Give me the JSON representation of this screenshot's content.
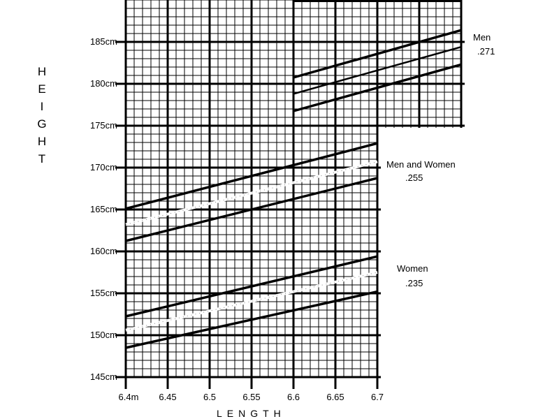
{
  "chart_data": {
    "type": "line",
    "title": "",
    "xlabel": "LENGTH",
    "ylabel": "HEIGHT",
    "xlim": [
      6.4,
      6.7
    ],
    "ylim": [
      145,
      190
    ],
    "grid": true,
    "x_ticks": [
      "6.4m",
      "6.45",
      "6.5",
      "6.55",
      "6.6",
      "6.65",
      "6.7"
    ],
    "y_ticks": [
      "185cm",
      "180cm",
      "175cm",
      "170cm",
      "165cm",
      "160cm",
      "155cm",
      "150cm",
      "145cm"
    ],
    "groups": [
      {
        "label": "Men",
        "coef": ".271",
        "x": [
          6.6,
          6.8
        ],
        "series": [
          {
            "name": "upper",
            "style": "solid",
            "y": [
              180.75,
              186.4
            ]
          },
          {
            "name": "mean",
            "style": "solid-thin",
            "y": [
              178.8,
              184.4
            ]
          },
          {
            "name": "lower",
            "style": "solid",
            "y": [
              176.75,
              182.3
            ]
          }
        ]
      },
      {
        "label": "Men and Women",
        "coef": ".255",
        "x": [
          6.4,
          6.7
        ],
        "series": [
          {
            "name": "upper",
            "style": "solid",
            "y": [
              165.1,
              172.9
            ]
          },
          {
            "name": "mean",
            "style": "dotted-white",
            "y": [
              163.2,
              170.7
            ]
          },
          {
            "name": "lower",
            "style": "solid",
            "y": [
              161.25,
              168.75
            ]
          }
        ]
      },
      {
        "label": "Women",
        "coef": ".235",
        "x": [
          6.4,
          6.7
        ],
        "series": [
          {
            "name": "upper",
            "style": "solid",
            "y": [
              152.25,
              159.4
            ]
          },
          {
            "name": "mean",
            "style": "dotted-white",
            "y": [
              150.6,
              157.5
            ]
          },
          {
            "name": "lower",
            "style": "solid",
            "y": [
              148.5,
              155.2
            ]
          }
        ]
      }
    ]
  }
}
